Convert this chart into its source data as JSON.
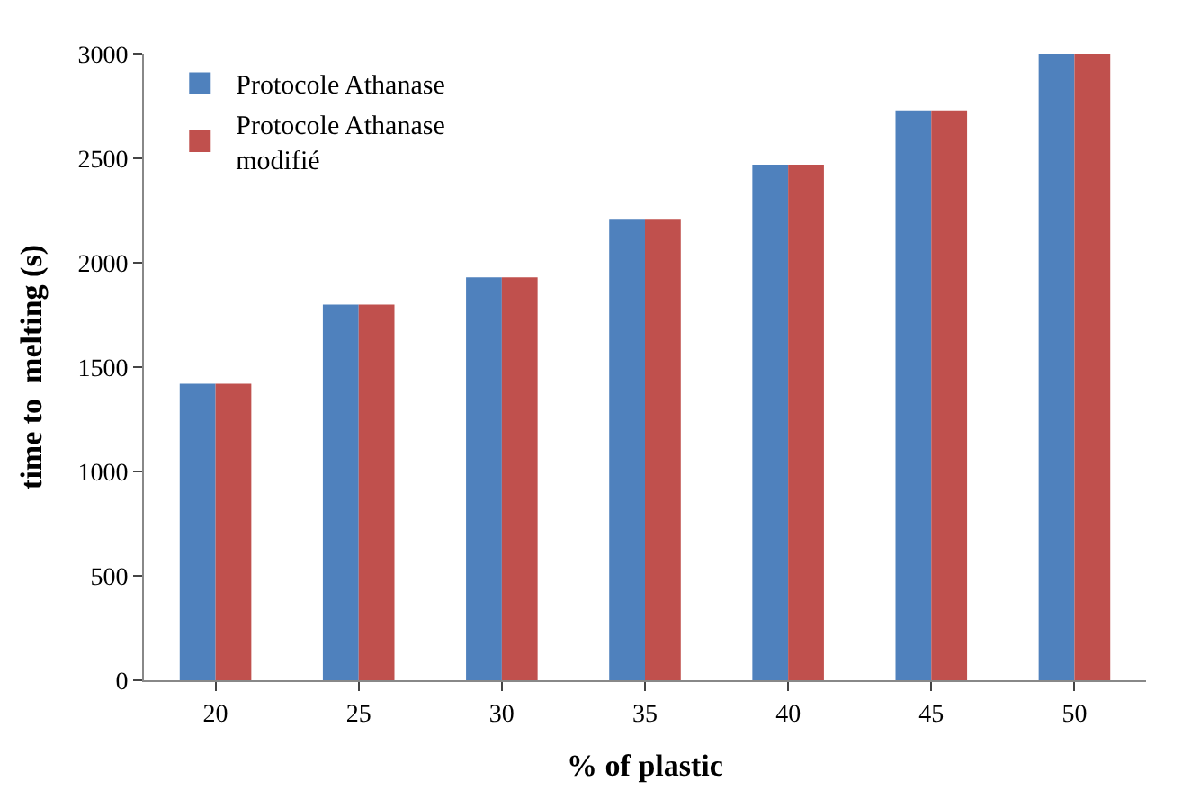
{
  "chart_data": {
    "type": "bar",
    "xlabel": "% of plastic",
    "ylabel": "time to  melting (s)",
    "categories": [
      "20",
      "25",
      "30",
      "35",
      "40",
      "45",
      "50"
    ],
    "series": [
      {
        "name": "Protocole Athanase",
        "color": "#4f81bd",
        "values": [
          1420,
          1800,
          1930,
          2210,
          2470,
          2730,
          3000
        ]
      },
      {
        "name": "Protocole Athanase modifié",
        "color": "#c0504d",
        "values": [
          1420,
          1800,
          1930,
          2210,
          2470,
          2730,
          3000
        ]
      }
    ],
    "ylim": [
      0,
      3000
    ],
    "yticks": [
      0,
      500,
      1000,
      1500,
      2000,
      2500,
      3000
    ],
    "grid": false,
    "legend": "top left"
  }
}
